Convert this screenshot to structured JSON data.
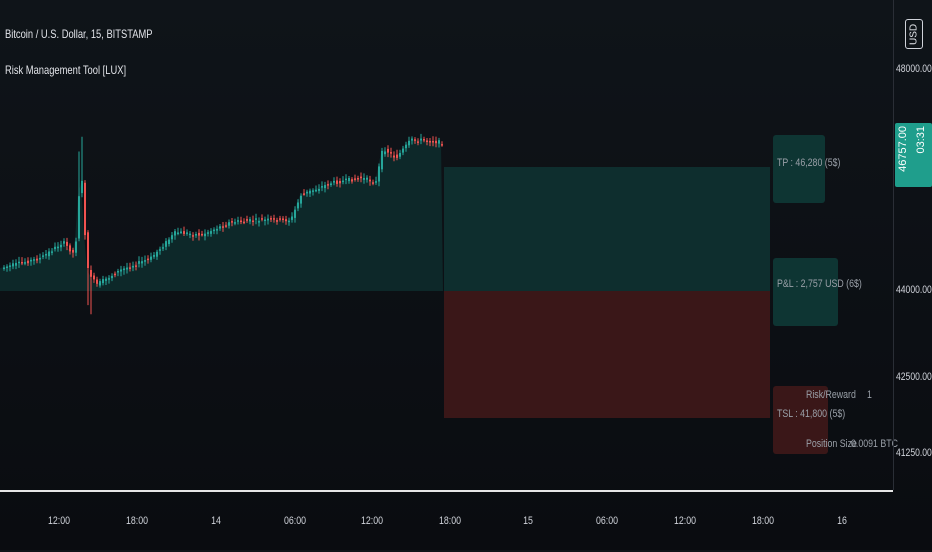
{
  "header": {
    "symbol": "Bitcoin / U.S. Dollar, 15, BITSTAMP",
    "indicator": "Risk Management Tool [LUX]"
  },
  "price_axis": {
    "currency": "USD",
    "labels": [
      "48000.00",
      "44000.00",
      "42500.00",
      "41250.00"
    ],
    "current_price": "46757.00",
    "countdown": "03:31"
  },
  "time_axis": {
    "labels": [
      "12:00",
      "18:00",
      "14",
      "06:00",
      "12:00",
      "18:00",
      "15",
      "06:00",
      "12:00",
      "18:00",
      "16"
    ]
  },
  "tool": {
    "tp_label": "TP : 46,280 (5$)",
    "pnl_label": "P&L : 2,757 USD (6$)",
    "sl_label": "TSL : 41,800 (5$)",
    "table": [
      {
        "key": "Risk/Reward",
        "value": "1"
      },
      {
        "key": "Position Size",
        "value": "0.0091 BTC"
      }
    ]
  },
  "colors": {
    "up": "#26a69a",
    "down": "#ef5350",
    "background": "#0f1419",
    "tp_zone": "#0e2e2e",
    "sl_zone": "#3a1718",
    "price_badge": "#1f9e8c"
  }
}
